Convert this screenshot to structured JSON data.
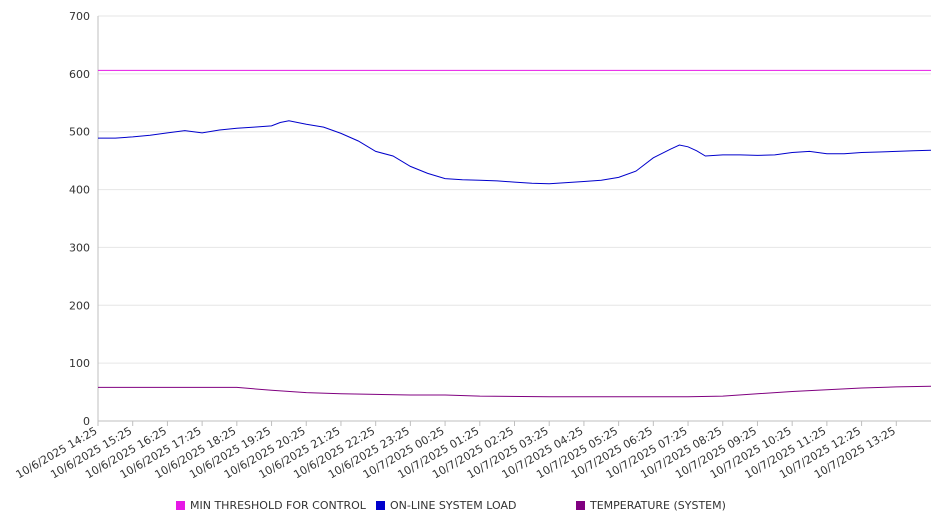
{
  "chart_data": {
    "type": "line",
    "title": "",
    "xlabel": "",
    "ylabel": "",
    "ylim": [
      0,
      700
    ],
    "yticks": [
      0,
      100,
      200,
      300,
      400,
      500,
      600,
      700
    ],
    "grid": true,
    "legend_position": "bottom",
    "x_tick_labels": [
      "10/6/2025 14:25",
      "10/6/2025 15:25",
      "10/6/2025 16:25",
      "10/6/2025 17:25",
      "10/6/2025 18:25",
      "10/6/2025 19:25",
      "10/6/2025 20:25",
      "10/6/2025 21:25",
      "10/6/2025 22:25",
      "10/6/2025 23:25",
      "10/7/2025 00:25",
      "10/7/2025 01:25",
      "10/7/2025 02:25",
      "10/7/2025 03:25",
      "10/7/2025 04:25",
      "10/7/2025 05:25",
      "10/7/2025 06:25",
      "10/7/2025 07:25",
      "10/7/2025 08:25",
      "10/7/2025 09:25",
      "10/7/2025 10:25",
      "10/7/2025 11:25",
      "10/7/2025 12:25",
      "10/7/2025 13:25"
    ],
    "x_range": [
      "10/6/2025 14:25",
      "10/7/2025 14:25"
    ],
    "series": [
      {
        "name": "MIN THRESHOLD FOR CONTROL",
        "color": "#e619e6",
        "x": [
          "10/6/2025 14:25",
          "10/7/2025 14:25"
        ],
        "values": [
          606,
          606
        ]
      },
      {
        "name": "ON-LINE SYSTEM LOAD",
        "color": "#0000cc",
        "x": [
          "10/6/2025 14:25",
          "10/6/2025 14:55",
          "10/6/2025 15:25",
          "10/6/2025 15:55",
          "10/6/2025 16:25",
          "10/6/2025 16:55",
          "10/6/2025 17:25",
          "10/6/2025 17:55",
          "10/6/2025 18:25",
          "10/6/2025 18:55",
          "10/6/2025 19:25",
          "10/6/2025 19:40",
          "10/6/2025 19:55",
          "10/6/2025 20:25",
          "10/6/2025 20:55",
          "10/6/2025 21:25",
          "10/6/2025 21:55",
          "10/6/2025 22:25",
          "10/6/2025 22:55",
          "10/6/2025 23:25",
          "10/6/2025 23:55",
          "10/7/2025 00:25",
          "10/7/2025 00:55",
          "10/7/2025 01:25",
          "10/7/2025 01:55",
          "10/7/2025 02:25",
          "10/7/2025 02:55",
          "10/7/2025 03:25",
          "10/7/2025 03:55",
          "10/7/2025 04:25",
          "10/7/2025 04:55",
          "10/7/2025 05:25",
          "10/7/2025 05:55",
          "10/7/2025 06:25",
          "10/7/2025 06:55",
          "10/7/2025 07:10",
          "10/7/2025 07:25",
          "10/7/2025 07:40",
          "10/7/2025 07:55",
          "10/7/2025 08:25",
          "10/7/2025 08:55",
          "10/7/2025 09:25",
          "10/7/2025 09:55",
          "10/7/2025 10:25",
          "10/7/2025 10:55",
          "10/7/2025 11:25",
          "10/7/2025 11:55",
          "10/7/2025 12:25",
          "10/7/2025 12:55",
          "10/7/2025 13:25",
          "10/7/2025 13:55",
          "10/7/2025 14:25"
        ],
        "values": [
          489,
          489,
          491,
          494,
          498,
          502,
          498,
          503,
          506,
          508,
          510,
          516,
          519,
          513,
          508,
          497,
          484,
          466,
          458,
          440,
          428,
          419,
          417,
          416,
          415,
          413,
          411,
          410,
          412,
          414,
          416,
          421,
          432,
          455,
          470,
          477,
          474,
          467,
          458,
          460,
          460,
          459,
          460,
          464,
          466,
          462,
          462,
          464,
          465,
          466,
          467,
          468
        ]
      },
      {
        "name": "TEMPERATURE (SYSTEM)",
        "color": "#800080",
        "x": [
          "10/6/2025 14:25",
          "10/6/2025 16:25",
          "10/6/2025 18:25",
          "10/6/2025 19:25",
          "10/6/2025 20:25",
          "10/6/2025 21:25",
          "10/6/2025 22:25",
          "10/6/2025 23:25",
          "10/7/2025 00:25",
          "10/7/2025 01:25",
          "10/7/2025 03:25",
          "10/7/2025 05:25",
          "10/7/2025 06:25",
          "10/7/2025 07:25",
          "10/7/2025 08:25",
          "10/7/2025 09:25",
          "10/7/2025 10:25",
          "10/7/2025 11:25",
          "10/7/2025 12:25",
          "10/7/2025 13:25",
          "10/7/2025 14:25"
        ],
        "values": [
          58,
          58,
          58,
          53,
          49,
          47,
          46,
          45,
          45,
          43,
          42,
          42,
          42,
          42,
          43,
          47,
          51,
          54,
          57,
          59,
          60
        ]
      }
    ]
  }
}
